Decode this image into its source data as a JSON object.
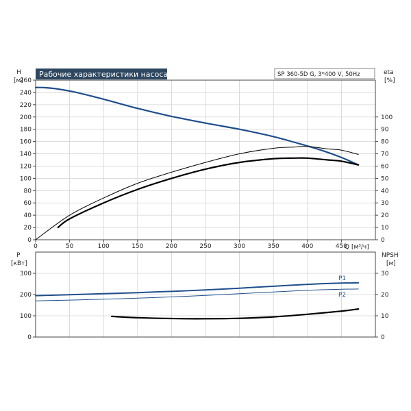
{
  "title": "Рабочие характеристики насоса",
  "model": "SP 360-5D G, 3*400 V, 50Hz",
  "colors": {
    "blue": "#1e4e8c",
    "black": "#000000",
    "grid": "#d4d4d4",
    "title_bg": "#2e4760"
  },
  "chart_data": [
    {
      "type": "line",
      "name": "upper",
      "left_axis": {
        "label": "H",
        "unit": "[м]",
        "range": [
          0,
          260
        ],
        "ticks": [
          0,
          20,
          40,
          60,
          80,
          100,
          120,
          140,
          160,
          180,
          200,
          220,
          240,
          260
        ]
      },
      "right_axis": {
        "label": "eta",
        "unit": "[%]",
        "range": [
          0,
          130
        ],
        "ticks": [
          0,
          10,
          20,
          30,
          40,
          50,
          60,
          70,
          80,
          90,
          100
        ]
      },
      "x_axis": {
        "label": "Q [м³/ч]",
        "range": [
          0,
          500
        ],
        "ticks": [
          0,
          50,
          100,
          150,
          200,
          250,
          300,
          350,
          400,
          450
        ]
      },
      "grid": true,
      "series": [
        {
          "key": "H",
          "axis": "left",
          "color": "#1e4e8c",
          "width": 2.2,
          "x": [
            0,
            10,
            30,
            60,
            100,
            150,
            200,
            250,
            300,
            350,
            380,
            420,
            450,
            475
          ],
          "y": [
            248,
            248,
            246,
            240,
            229,
            214,
            201,
            190,
            180,
            168,
            159,
            146,
            134,
            122
          ]
        },
        {
          "key": "eta_thin",
          "axis": "right",
          "color": "#000000",
          "width": 1,
          "x": [
            0,
            50,
            100,
            150,
            200,
            250,
            300,
            350,
            380,
            400,
            430,
            450,
            475
          ],
          "y": [
            0,
            20,
            34,
            46,
            55,
            63,
            70,
            74.5,
            75.5,
            76,
            74,
            73,
            69.5
          ]
        },
        {
          "key": "eta_thick",
          "axis": "right",
          "color": "#000000",
          "width": 2.2,
          "x": [
            33,
            50,
            100,
            150,
            200,
            250,
            300,
            350,
            380,
            400,
            430,
            450,
            475
          ],
          "y": [
            10,
            17,
            30,
            41,
            50,
            57.5,
            63,
            66,
            66.5,
            66.5,
            65,
            64,
            61
          ]
        }
      ]
    },
    {
      "type": "line",
      "name": "lower",
      "left_axis": {
        "label": "P",
        "unit": "[кВт]",
        "range": [
          0,
          400
        ],
        "ticks": [
          0,
          100,
          200,
          300
        ]
      },
      "right_axis": {
        "label": "NPSH",
        "unit": "[м]",
        "range": [
          0,
          40
        ],
        "ticks": [
          0,
          10,
          20,
          30
        ]
      },
      "x_axis": {
        "range": [
          0,
          500
        ]
      },
      "grid": true,
      "series": [
        {
          "key": "P1",
          "name": "P1",
          "axis": "left",
          "color": "#1e4e8c",
          "width": 2,
          "x": [
            0,
            50,
            100,
            150,
            200,
            250,
            300,
            350,
            400,
            450,
            475
          ],
          "y": [
            195,
            199,
            204,
            209,
            215,
            222,
            230,
            239,
            248,
            254,
            255
          ]
        },
        {
          "key": "P2",
          "name": "P2",
          "axis": "left",
          "color": "#1e4e8c",
          "width": 1,
          "x": [
            0,
            50,
            100,
            150,
            200,
            250,
            300,
            350,
            400,
            450,
            475
          ],
          "y": [
            170,
            174,
            178,
            183,
            189,
            196,
            204,
            212,
            220,
            225,
            226
          ]
        },
        {
          "key": "NPSH",
          "axis": "right",
          "color": "#000000",
          "width": 2.2,
          "x": [
            112,
            150,
            200,
            250,
            300,
            350,
            400,
            450,
            475
          ],
          "y": [
            9.7,
            9.1,
            8.7,
            8.6,
            8.8,
            9.5,
            10.7,
            12.2,
            13.2
          ]
        }
      ]
    }
  ]
}
